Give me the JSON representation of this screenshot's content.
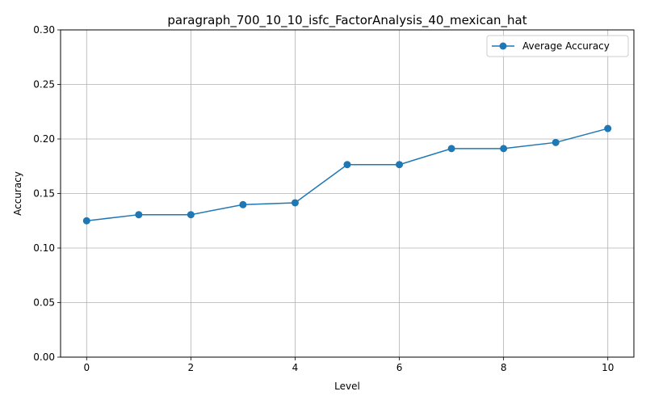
{
  "chart_data": {
    "type": "line",
    "title": "paragraph_700_10_10_isfc_FactorAnalysis_40_mexican_hat",
    "xlabel": "Level",
    "ylabel": "Accuracy",
    "xlim": [
      -0.5,
      10.5
    ],
    "ylim": [
      0,
      0.3
    ],
    "xticks": [
      0,
      2,
      4,
      6,
      8,
      10
    ],
    "xtick_labels": [
      "0",
      "2",
      "4",
      "6",
      "8",
      "10"
    ],
    "yticks": [
      0,
      0.05,
      0.1,
      0.15,
      0.2,
      0.25,
      0.3
    ],
    "ytick_labels": [
      "0.00",
      "0.05",
      "0.10",
      "0.15",
      "0.20",
      "0.25",
      "0.30"
    ],
    "grid": true,
    "legend_position": "top-right",
    "series": [
      {
        "name": "Average Accuracy",
        "color": "#1f77b4",
        "marker": "circle",
        "x": [
          0,
          1,
          2,
          3,
          4,
          5,
          6,
          7,
          8,
          9,
          10
        ],
        "y": [
          0.125,
          0.1306,
          0.1306,
          0.1398,
          0.1415,
          0.1765,
          0.1765,
          0.1912,
          0.1912,
          0.1968,
          0.2096
        ]
      }
    ]
  }
}
